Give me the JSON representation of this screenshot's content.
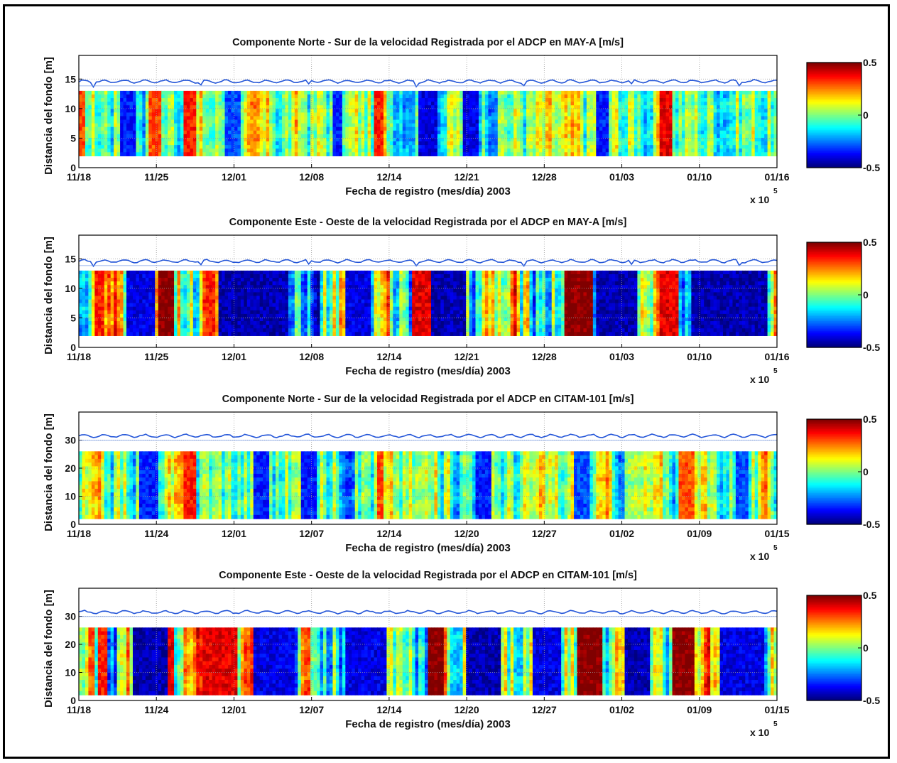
{
  "chart_data": [
    {
      "type": "heatmap",
      "title": "Componente Norte - Sur de la velocidad Registrada por el ADCP en MAY-A [m/s]",
      "xlabel": "Fecha de registro (mes/día) 2003",
      "ylabel": "Distancia del fondo [m]",
      "x_ticks": [
        "11/18",
        "11/25",
        "12/01",
        "12/08",
        "12/14",
        "12/21",
        "12/28",
        "01/03",
        "01/10",
        "01/16"
      ],
      "y_ticks": [
        0,
        5,
        10,
        15
      ],
      "ylim": [
        0,
        19
      ],
      "x_multiplier": "x 10",
      "x_multiplier_exp": "5",
      "colorbar": {
        "ticks": [
          {
            "label": "0.5",
            "value": 0.5
          },
          {
            "label": "0",
            "value": 0
          },
          {
            "label": "-0.5",
            "value": -0.5
          }
        ],
        "range": [
          -0.5,
          0.5
        ]
      },
      "surface_level_m": 14.6,
      "data_range_m": [
        2,
        13
      ],
      "grid": true,
      "variability": "moderate",
      "hot_streaks": [
        {
          "pos": 0.005,
          "w": 0.005,
          "val": 0.3
        },
        {
          "pos": 0.11,
          "w": 0.01,
          "val": 0.3
        },
        {
          "pos": 0.16,
          "w": 0.01,
          "val": 0.35
        },
        {
          "pos": 0.43,
          "w": 0.006,
          "val": 0.35
        },
        {
          "pos": 0.84,
          "w": 0.01,
          "val": 0.4
        }
      ],
      "cold_streaks": [
        {
          "pos": 0.07,
          "w": 0.01,
          "val": -0.35
        },
        {
          "pos": 0.22,
          "w": 0.01,
          "val": -0.3
        },
        {
          "pos": 0.37,
          "w": 0.008,
          "val": -0.35
        },
        {
          "pos": 0.5,
          "w": 0.012,
          "val": -0.4
        },
        {
          "pos": 0.56,
          "w": 0.012,
          "val": -0.4
        },
        {
          "pos": 0.75,
          "w": 0.01,
          "val": -0.35
        }
      ]
    },
    {
      "type": "heatmap",
      "title": "Componente Este - Oeste de la velocidad Registrada por el ADCP en MAY-A [m/s]",
      "xlabel": "Fecha de registro (mes/día) 2003",
      "ylabel": "Distancia del fondo [m]",
      "x_ticks": [
        "11/18",
        "11/25",
        "12/01",
        "12/08",
        "12/14",
        "12/21",
        "12/28",
        "01/03",
        "01/10",
        "01/16"
      ],
      "y_ticks": [
        0,
        5,
        10,
        15
      ],
      "ylim": [
        0,
        19
      ],
      "x_multiplier": "x 10",
      "x_multiplier_exp": "5",
      "colorbar": {
        "ticks": [
          {
            "label": "0.5",
            "value": 0.5
          },
          {
            "label": "0",
            "value": 0
          },
          {
            "label": "-0.5",
            "value": -0.5
          }
        ],
        "range": [
          -0.5,
          0.5
        ]
      },
      "surface_level_m": 14.6,
      "data_range_m": [
        2,
        13
      ],
      "grid": true,
      "variability": "strong",
      "hot_streaks": [
        {
          "pos": 0.03,
          "w": 0.008,
          "val": 0.35
        },
        {
          "pos": 0.125,
          "w": 0.012,
          "val": 0.5
        },
        {
          "pos": 0.19,
          "w": 0.006,
          "val": 0.35
        },
        {
          "pos": 0.49,
          "w": 0.015,
          "val": 0.4
        },
        {
          "pos": 0.715,
          "w": 0.02,
          "val": 0.5
        },
        {
          "pos": 0.845,
          "w": 0.015,
          "val": 0.4
        }
      ],
      "cold_streaks": [
        {
          "pos": 0.09,
          "w": 0.02,
          "val": -0.4
        },
        {
          "pos": 0.25,
          "w": 0.05,
          "val": -0.45
        },
        {
          "pos": 0.4,
          "w": 0.02,
          "val": -0.4
        },
        {
          "pos": 0.53,
          "w": 0.025,
          "val": -0.45
        },
        {
          "pos": 0.77,
          "w": 0.03,
          "val": -0.45
        },
        {
          "pos": 0.93,
          "w": 0.055,
          "val": -0.45
        }
      ]
    },
    {
      "type": "heatmap",
      "title": "Componente Norte - Sur de la velocidad Registrada por el ADCP en CITAM-101 [m/s]",
      "xlabel": "Fecha de registro (mes/día) 2003",
      "ylabel": "Distancia del fondo [m]",
      "x_ticks": [
        "11/18",
        "11/24",
        "12/01",
        "12/07",
        "12/14",
        "12/20",
        "12/27",
        "01/02",
        "01/09",
        "01/15"
      ],
      "y_ticks": [
        0,
        10,
        20,
        30
      ],
      "ylim": [
        0,
        40
      ],
      "x_multiplier": "x 10",
      "x_multiplier_exp": "5",
      "colorbar": {
        "ticks": [
          {
            "label": "0.5",
            "value": 0.5
          },
          {
            "label": "0",
            "value": 0
          },
          {
            "label": "-0.5",
            "value": -0.5
          }
        ],
        "range": [
          -0.5,
          0.5
        ]
      },
      "surface_level_m": 31.5,
      "data_range_m": [
        2,
        26
      ],
      "grid": true,
      "variability": "moderate",
      "hot_streaks": [
        {
          "pos": 0.16,
          "w": 0.008,
          "val": 0.35
        },
        {
          "pos": 0.43,
          "w": 0.005,
          "val": 0.3
        },
        {
          "pos": 0.87,
          "w": 0.01,
          "val": 0.3
        }
      ],
      "cold_streaks": [
        {
          "pos": 0.1,
          "w": 0.012,
          "val": -0.35
        },
        {
          "pos": 0.26,
          "w": 0.012,
          "val": -0.35
        },
        {
          "pos": 0.33,
          "w": 0.01,
          "val": -0.35
        },
        {
          "pos": 0.58,
          "w": 0.01,
          "val": -0.35
        },
        {
          "pos": 0.72,
          "w": 0.01,
          "val": -0.3
        },
        {
          "pos": 0.95,
          "w": 0.01,
          "val": -0.3
        }
      ]
    },
    {
      "type": "heatmap",
      "title": "Componente Este - Oeste de la velocidad Registrada por el ADCP en CITAM-101 [m/s]",
      "xlabel": "Fecha de registro (mes/día) 2003",
      "ylabel": "Distancia del fondo [m]",
      "x_ticks": [
        "11/18",
        "11/24",
        "12/01",
        "12/07",
        "12/14",
        "12/20",
        "12/27",
        "01/02",
        "01/09",
        "01/15"
      ],
      "y_ticks": [
        0,
        10,
        20,
        30
      ],
      "ylim": [
        0,
        40
      ],
      "x_multiplier": "x 10",
      "x_multiplier_exp": "5",
      "colorbar": {
        "ticks": [
          {
            "label": "0.5",
            "value": 0.5
          },
          {
            "label": "0",
            "value": 0
          },
          {
            "label": "-0.5",
            "value": -0.5
          }
        ],
        "range": [
          -0.5,
          0.5
        ]
      },
      "surface_level_m": 31.5,
      "data_range_m": [
        2,
        26
      ],
      "grid": true,
      "variability": "strong",
      "hot_streaks": [
        {
          "pos": 0.035,
          "w": 0.008,
          "val": 0.35
        },
        {
          "pos": 0.13,
          "w": 0.006,
          "val": 0.4
        },
        {
          "pos": 0.2,
          "w": 0.025,
          "val": 0.4
        },
        {
          "pos": 0.51,
          "w": 0.012,
          "val": 0.5
        },
        {
          "pos": 0.73,
          "w": 0.018,
          "val": 0.5
        },
        {
          "pos": 0.865,
          "w": 0.015,
          "val": 0.5
        }
      ],
      "cold_streaks": [
        {
          "pos": 0.1,
          "w": 0.025,
          "val": -0.45
        },
        {
          "pos": 0.28,
          "w": 0.03,
          "val": -0.4
        },
        {
          "pos": 0.41,
          "w": 0.03,
          "val": -0.4
        },
        {
          "pos": 0.58,
          "w": 0.025,
          "val": -0.45
        },
        {
          "pos": 0.67,
          "w": 0.02,
          "val": -0.4
        },
        {
          "pos": 0.8,
          "w": 0.02,
          "val": -0.45
        },
        {
          "pos": 0.95,
          "w": 0.03,
          "val": -0.4
        }
      ]
    }
  ]
}
